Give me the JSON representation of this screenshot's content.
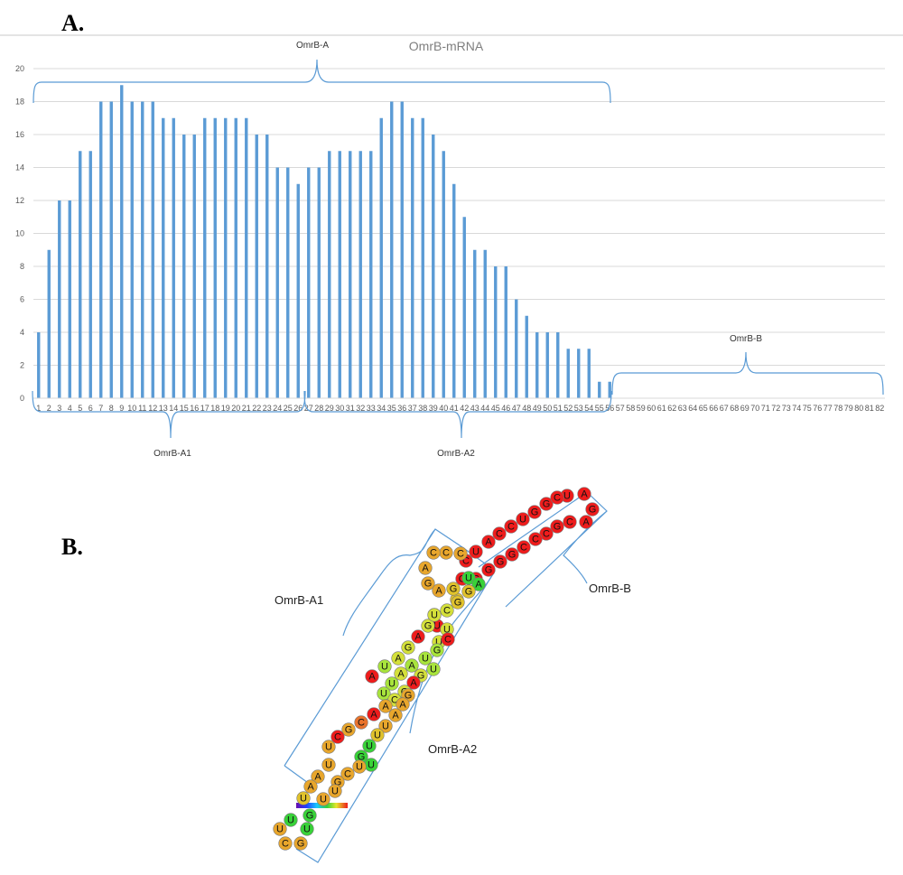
{
  "panel_a": {
    "label": "A."
  },
  "panel_b": {
    "label": "B."
  },
  "chart_data": {
    "type": "bar",
    "title": "OmrB-mRNA",
    "xlabel": "",
    "ylabel": "",
    "ylim": [
      0,
      20
    ],
    "yticks": [
      0,
      2,
      4,
      6,
      8,
      10,
      12,
      14,
      16,
      18,
      20
    ],
    "grid": true,
    "bar_color": "#5b9bd5",
    "categories": [
      "1",
      "2",
      "3",
      "4",
      "5",
      "6",
      "7",
      "8",
      "9",
      "10",
      "11",
      "12",
      "13",
      "14",
      "15",
      "16",
      "17",
      "18",
      "19",
      "20",
      "21",
      "22",
      "23",
      "24",
      "25",
      "26",
      "27",
      "28",
      "29",
      "30",
      "31",
      "32",
      "33",
      "34",
      "35",
      "36",
      "37",
      "38",
      "39",
      "40",
      "41",
      "42",
      "43",
      "44",
      "45",
      "46",
      "47",
      "48",
      "49",
      "50",
      "51",
      "52",
      "53",
      "54",
      "55",
      "56",
      "57",
      "58",
      "59",
      "60",
      "61",
      "62",
      "63",
      "64",
      "65",
      "66",
      "67",
      "68",
      "69",
      "70",
      "71",
      "72",
      "73",
      "74",
      "75",
      "76",
      "77",
      "78",
      "79",
      "80",
      "81",
      "82"
    ],
    "values": [
      4,
      9,
      12,
      12,
      15,
      15,
      18,
      18,
      19,
      18,
      18,
      18,
      17,
      17,
      16,
      16,
      17,
      17,
      17,
      17,
      17,
      16,
      16,
      14,
      14,
      13,
      14,
      14,
      15,
      15,
      15,
      15,
      15,
      17,
      18,
      18,
      17,
      17,
      16,
      15,
      13,
      11,
      9,
      9,
      8,
      8,
      6,
      5,
      4,
      4,
      4,
      3,
      3,
      3,
      1,
      1,
      0,
      0,
      0,
      0,
      0,
      0,
      0,
      0,
      0,
      0,
      0,
      0,
      0,
      0,
      0,
      0,
      0,
      0,
      0,
      0,
      0,
      0,
      0,
      0,
      0,
      0
    ],
    "annotations": {
      "omrb_a": "OmrB-A",
      "omrb_b": "OmrB-B",
      "omrb_a1": "OmrB-A1",
      "omrb_a2": "OmrB-A2"
    }
  },
  "structure": {
    "labels": {
      "omrb_a1": "OmrB-A1",
      "omrb_a2": "OmrB-A2",
      "omrb_b": "OmrB-B"
    },
    "nucleotides": [
      {
        "base": "U",
        "color": "#ee1c1c"
      },
      {
        "base": "A",
        "color": "#ee1c1c"
      },
      {
        "base": "G",
        "color": "#ee1c1c"
      },
      {
        "base": "A",
        "color": "#ee1c1c"
      },
      {
        "base": "C",
        "color": "#ee1c1c"
      },
      {
        "base": "G",
        "color": "#ee1c1c"
      },
      {
        "base": "C",
        "color": "#ee1c1c"
      },
      {
        "base": "C",
        "color": "#ee1c1c"
      },
      {
        "base": "C",
        "color": "#ee1c1c"
      },
      {
        "base": "G",
        "color": "#ee1c1c"
      },
      {
        "base": "G",
        "color": "#ee1c1c"
      },
      {
        "base": "G",
        "color": "#ee1c1c"
      },
      {
        "base": "G",
        "color": "#ee1c1c"
      },
      {
        "base": "A",
        "color": "#ee1c1c"
      },
      {
        "base": "C",
        "color": "#ee1c1c"
      },
      {
        "base": "C",
        "color": "#ee1c1c"
      },
      {
        "base": "U",
        "color": "#ee1c1c"
      },
      {
        "base": "G",
        "color": "#ee1c1c"
      },
      {
        "base": "G",
        "color": "#ee1c1c"
      },
      {
        "base": "C",
        "color": "#ee1c1c"
      },
      {
        "base": "U",
        "color": "#ee1c1c"
      },
      {
        "base": "C",
        "color": "#ee1c1c"
      },
      {
        "base": "G",
        "color": "#ee1c1c"
      },
      {
        "base": "U",
        "color": "#38d238"
      },
      {
        "base": "A",
        "color": "#38d238"
      },
      {
        "base": "G",
        "color": "#e0c22c"
      },
      {
        "base": "C",
        "color": "#e0c22c"
      },
      {
        "base": "C",
        "color": "#e8a62c"
      },
      {
        "base": "C",
        "color": "#e8a62c"
      },
      {
        "base": "C",
        "color": "#e8a62c"
      },
      {
        "base": "A",
        "color": "#e8a62c"
      },
      {
        "base": "G",
        "color": "#e8a62c"
      },
      {
        "base": "A",
        "color": "#e8a62c"
      },
      {
        "base": "G",
        "color": "#e0c22c"
      },
      {
        "base": "G",
        "color": "#e0c22c"
      },
      {
        "base": "C",
        "color": "#d4e03a"
      },
      {
        "base": "A",
        "color": "#ee1c1c"
      },
      {
        "base": "U",
        "color": "#ee1c1c"
      },
      {
        "base": "U",
        "color": "#d4e03a"
      },
      {
        "base": "U",
        "color": "#d4e03a"
      },
      {
        "base": "C",
        "color": "#ee1c1c"
      },
      {
        "base": "G",
        "color": "#a8e43c"
      },
      {
        "base": "U",
        "color": "#a8e43c"
      },
      {
        "base": "A",
        "color": "#a8e43c"
      },
      {
        "base": "A",
        "color": "#d4e03a"
      },
      {
        "base": "U",
        "color": "#a8e43c"
      },
      {
        "base": "U",
        "color": "#a8e43c"
      },
      {
        "base": "A",
        "color": "#ee1c1c"
      },
      {
        "base": "U",
        "color": "#a8e43c"
      },
      {
        "base": "A",
        "color": "#d4e03a"
      },
      {
        "base": "G",
        "color": "#d4e03a"
      },
      {
        "base": "A",
        "color": "#ee1c1c"
      },
      {
        "base": "G",
        "color": "#d4e03a"
      },
      {
        "base": "U",
        "color": "#d4e03a"
      },
      {
        "base": "U",
        "color": "#a8e43c"
      },
      {
        "base": "G",
        "color": "#d4e03a"
      },
      {
        "base": "A",
        "color": "#ee1c1c"
      },
      {
        "base": "G",
        "color": "#d4e03a"
      },
      {
        "base": "C",
        "color": "#d4e03a"
      },
      {
        "base": "A",
        "color": "#e8a62c"
      },
      {
        "base": "A",
        "color": "#ee1c1c"
      },
      {
        "base": "C",
        "color": "#e8732c"
      },
      {
        "base": "G",
        "color": "#e8a62c"
      },
      {
        "base": "C",
        "color": "#ee1c1c"
      },
      {
        "base": "U",
        "color": "#e8a62c"
      },
      {
        "base": "G",
        "color": "#e8a62c"
      },
      {
        "base": "A",
        "color": "#e8a62c"
      },
      {
        "base": "A",
        "color": "#e8a62c"
      },
      {
        "base": "U",
        "color": "#e8a62c"
      },
      {
        "base": "U",
        "color": "#e0c22c"
      },
      {
        "base": "U",
        "color": "#38d238"
      },
      {
        "base": "G",
        "color": "#38d238"
      },
      {
        "base": "U",
        "color": "#38d238"
      },
      {
        "base": "U",
        "color": "#e8a62c"
      },
      {
        "base": "C",
        "color": "#e8a62c"
      },
      {
        "base": "G",
        "color": "#e8a62c"
      }
    ]
  }
}
